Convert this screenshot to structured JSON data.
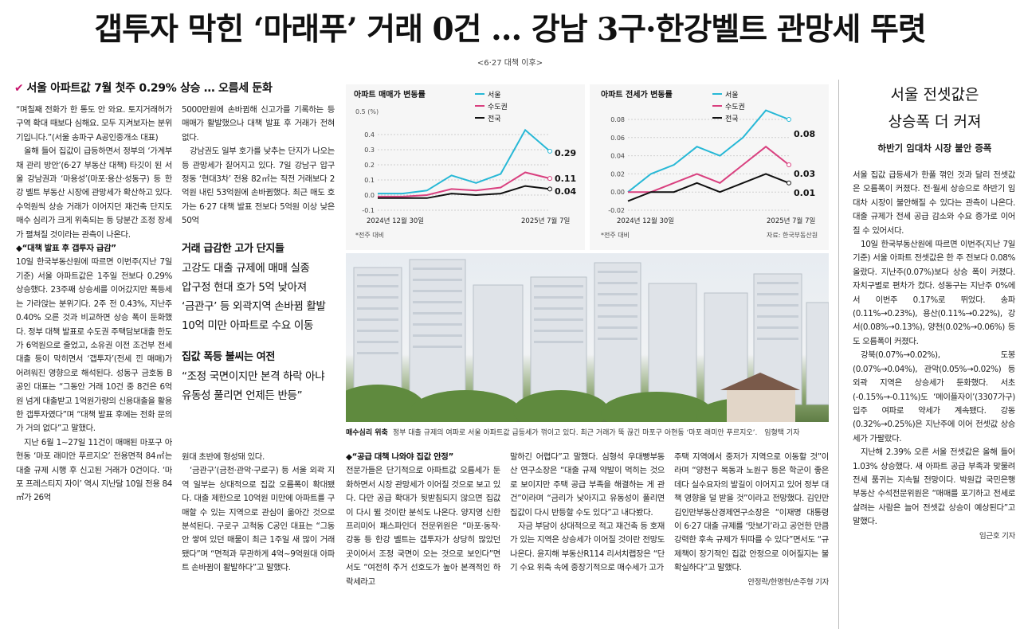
{
  "headline": "갭투자 막힌 ‘마래푸’ 거래 0건 … 강남 3구·한강벨트 관망세 뚜렷",
  "subnote": "<6·27 대책 이후>",
  "kicker": "서울 아파트값 7월 첫주 0.29% 상승 … 오름세 둔화",
  "col1": [
    "“며칠째 전화가 한 통도 안 와요. 토지거래허가구역 확대 때보다 심해요. 모두 지켜보자는 분위기입니다.”(서울 송파구 A공인중개소 대표)",
    "올해 들어 집값이 급등하면서 정부의 ‘가계부채 관리 방안’(6·27 부동산 대책) 타깃이 된 서울 강남권과 ‘마용성’(마포·용산·성동구) 등 한강 벨트 부동산 시장에 관망세가 확산하고 있다. 수억원씩 상승 거래가 이어지던 재건축 단지도 매수 심리가 크게 위축되는 등 당분간 조정 장세가 펼쳐질 것이라는 관측이 나온다.",
    "◆“대책 발표 후 갭투자 급감”",
    "10일 한국부동산원에 따르면 이번주(지난 7일 기준) 서울 아파트값은 1주일 전보다 0.29% 상승했다. 23주째 상승세를 이어갔지만 폭등세는 가라앉는 분위기다. 2주 전 0.43%, 지난주 0.40% 오른 것과 비교하면 상승 폭이 둔화했다. 정부 대책 발표로 수도권 주택담보대출 한도가 6억원으로 줄었고, 소유권 이전 조건부 전세대출 등이 막히면서 ‘갭투자’(전세 낀 매매)가 어려워진 영향으로 해석된다. 성동구 금호동 B공인 대표는 “그동안 거래 10건 중 8건은 6억원 넘게 대출받고 1억원가량의 신용대출을 활용한 갭투자였다”며 “대책 발표 후에는 전화 문의가 거의 없다”고 말했다.",
    "지난 6월 1~27일 11건이 매매된 마포구 아현동 ‘마포 래미안 푸르지오’ 전용면적 84㎡는 대출 규제 시행 후 신고된 거래가 0건이다. ‘마포 프레스티지 자이’ 역시 지난달 10일 전용 84㎡가 26억"
  ],
  "col2a": [
    "5000만원에 손바뀜해 신고가를 기록하는 등 매매가 활발했으나 대책 발표 후 거래가 전혀 없다.",
    "강남권도 일부 호가를 낮추는 단지가 나오는 등 관망세가 짙어지고 있다. 7일 강남구 압구정동 ‘현대3차’ 전용 82㎡는 직전 거래보다 2억원 내린 53억원에 손바뀜했다. 최근 매도 호가는 6·27 대책 발표 전보다 5억원 이상 낮은 50억"
  ],
  "box1_head": "거래 급감한 고가 단지들",
  "box1_lines": [
    "고강도 대출 규제에 매매 실종",
    "압구정 현대 호가 5억 낮아져",
    "‘금관구’ 등 외곽지역 손바뀜 활발",
    "10억 미만 아파트로 수요 이동"
  ],
  "box2_head": "집값 폭등 불씨는 여전",
  "box2_lines": [
    "“조정 국면이지만 본격 하락 아냐",
    "유동성 풀리면 언제든 반등”"
  ],
  "col2b": [
    "원대 초반에 형성돼 있다.",
    "‘금관구’(금천·관악·구로구) 등 서울 외곽 지역 일부는 상대적으로 집값 오름폭이 확대됐다. 대출 제한으로 10억원 미만에 아파트를 구매할 수 있는 지역으로 관심이 옮아간 것으로 분석된다. 구로구 고척동 C공인 대표는 “그동안 쌓여 있던 매물이 최근 1주일 새 많이 거래됐다”며 “면적과 무관하게 4억~9억원대 아파트 손바뀜이 활발하다”고 말했다."
  ],
  "col3": [
    "◆“공급 대책 나와야 집값 안정”",
    "전문가들은 단기적으로 아파트값 오름세가 둔화하면서 시장 관망세가 이어질 것으로 보고 있다. 다만 공급 확대가 뒷받침되지 않으면 집값이 다시 뛸 것이란 분석도 나온다. 양지영 신한 프리미어 패스파인더 전문위원은 “마포·동작·강동 등 한강 벨트는 갭투자가 상당히 많았던 곳이어서 조정 국면이 오는 것으로 보인다”면서도 “여전히 주거 선호도가 높아 본격적인 하락세라고"
  ],
  "col4": [
    "말하긴 어렵다”고 말했다. 심형석 우대빵부동산 연구소장은 “대출 규제 약발이 먹히는 것으로 보이지만 주택 공급 부족을 해결하는 게 관건”이라며 “금리가 낮아지고 유동성이 풀리면 집값이 다시 반등할 수도 있다”고 내다봤다.",
    "자금 부담이 상대적으로 적고 재건축 등 호재가 있는 지역은 상승세가 이어질 것이란 전망도 나온다. 윤지해 부동산R114 리서치랩장은 “단기 수요 위축 속에 중장기적으로 매수세가 고가"
  ],
  "col5": [
    "주택 지역에서 중저가 지역으로 이동할 것”이라며 “양천구 목동과 노원구 등은 학군이 좋은 데다 실수요자의 발길이 이어지고 있어 정부 대책 영향을 덜 받을 것”이라고 전망했다. 김인만 김인만부동산경제연구소장은 “이재명 대통령이 6·27 대출 규제를 ‘맛보기’라고 공언한 만큼 강력한 후속 규제가 뒤따를 수 있다”면서도 “규제책이 장기적인 집값 안정으로 이어질지는 불확실하다”고 말했다."
  ],
  "byline_main": "안정락/한명현/손주형 기자",
  "chart1": {
    "title": "아파트 매매가 변동률",
    "unit": "0.5 (%)",
    "yticks": [
      "0.4",
      "0.3",
      "0.2",
      "0.1",
      "0.0",
      "-0.1"
    ],
    "xstart": "2024년 12월 30일",
    "xend": "2025년 7월 7일",
    "footnote": "*전주 대비",
    "end_labels": [
      "0.29",
      "0.11",
      "0.04"
    ]
  },
  "chart2": {
    "title": "아파트 전세가 변동률",
    "yticks": [
      "0.08",
      "0.06",
      "0.04",
      "0.02",
      "0.00",
      "-0.02"
    ],
    "xstart": "2024년 12월 30일",
    "xend": "2025년 7월 7일",
    "footnote": "*전주 대비",
    "source": "자료: 한국부동산원",
    "end_labels": [
      "0.08",
      "0.03",
      "0.01"
    ]
  },
  "legend": [
    "서울",
    "수도권",
    "전국"
  ],
  "colors": {
    "seoul": "#27b8d6",
    "metro": "#d9407f",
    "nation": "#111111",
    "kicker_mark": "#c8176e"
  },
  "chart_data": [
    {
      "type": "line",
      "title": "아파트 매매가 변동률",
      "x": [
        "2024-12-30",
        "2025-01",
        "2025-02",
        "2025-03",
        "2025-04",
        "2025-05",
        "2025-06",
        "2025-07-07"
      ],
      "ylim": [
        -0.1,
        0.5
      ],
      "series": [
        {
          "name": "서울",
          "values": [
            0.01,
            0.01,
            0.03,
            0.13,
            0.08,
            0.14,
            0.43,
            0.29
          ]
        },
        {
          "name": "수도권",
          "values": [
            -0.01,
            -0.01,
            0.0,
            0.04,
            0.03,
            0.05,
            0.15,
            0.11
          ]
        },
        {
          "name": "전국",
          "values": [
            -0.02,
            -0.02,
            -0.02,
            0.01,
            0.0,
            0.01,
            0.06,
            0.04
          ]
        }
      ]
    },
    {
      "type": "line",
      "title": "아파트 전세가 변동률",
      "x": [
        "2024-12-30",
        "2025-01",
        "2025-02",
        "2025-03",
        "2025-04",
        "2025-05",
        "2025-06",
        "2025-07-07"
      ],
      "ylim": [
        -0.02,
        0.08
      ],
      "series": [
        {
          "name": "서울",
          "values": [
            0.0,
            0.02,
            0.03,
            0.05,
            0.04,
            0.06,
            0.09,
            0.08
          ]
        },
        {
          "name": "수도권",
          "values": [
            0.0,
            0.0,
            0.01,
            0.02,
            0.01,
            0.03,
            0.05,
            0.03
          ]
        },
        {
          "name": "전국",
          "values": [
            -0.01,
            0.0,
            0.0,
            0.01,
            0.0,
            0.01,
            0.02,
            0.01
          ]
        }
      ]
    }
  ],
  "photo_caption_label": "매수심리 위축",
  "photo_caption": "정부 대출 규제의 여파로 서울 아파트값 급등세가 꺾이고 있다. 최근 거래가 뚝 끊긴 마포구 아현동 ‘마포 래미안 푸르지오’.",
  "photo_credit": "임형택 기자",
  "side_title_1": "서울 전셋값은",
  "side_title_2": "상승폭 더 커져",
  "side_sub": "하반기 임대차 시장 불안 증폭",
  "side_body": [
    "서울 집값 급등세가 한풀 꺾인 것과 달리 전셋값은 오름폭이 커졌다. 전·월세 상승으로 하반기 임대차 시장이 불안해질 수 있다는 관측이 나온다. 대출 규제가 전세 공급 감소와 수요 증가로 이어질 수 있어서다.",
    "10일 한국부동산원에 따르면 이번주(지난 7일 기준) 서울 아파트 전셋값은 한 주 전보다 0.08% 올랐다. 지난주(0.07%)보다 상승 폭이 커졌다. 자치구별로 편차가 컸다. 성동구는 지난주 0%에서 이번주 0.17%로 뛰었다. 송파(0.11%→0.23%), 용산(0.11%→0.22%), 강서(0.08%→0.13%), 양천(0.02%→0.06%) 등도 오름폭이 커졌다.",
    "강북(0.07%→0.02%), 도봉(0.07%→0.04%), 관악(0.05%→0.02%) 등 외곽 지역은 상승세가 둔화했다. 서초(-0.15%→-0.11%)도 ‘메이플자이’(3307가구) 입주 여파로 약세가 계속됐다. 강동(0.32%→0.25%)은 지난주에 이어 전셋값 상승세가 가팔랐다.",
    "지난해 2.39% 오른 서울 전셋값은 올해 들어 1.03% 상승했다. 새 아파트 공급 부족과 맞물려 전세 품귀는 지속될 전망이다. 박원갑 국민은행 부동산 수석전문위원은 “매매를 포기하고 전세로 살려는 사람은 늘어 전셋값 상승이 예상된다”고 말했다."
  ],
  "side_byline": "임근호 기자"
}
